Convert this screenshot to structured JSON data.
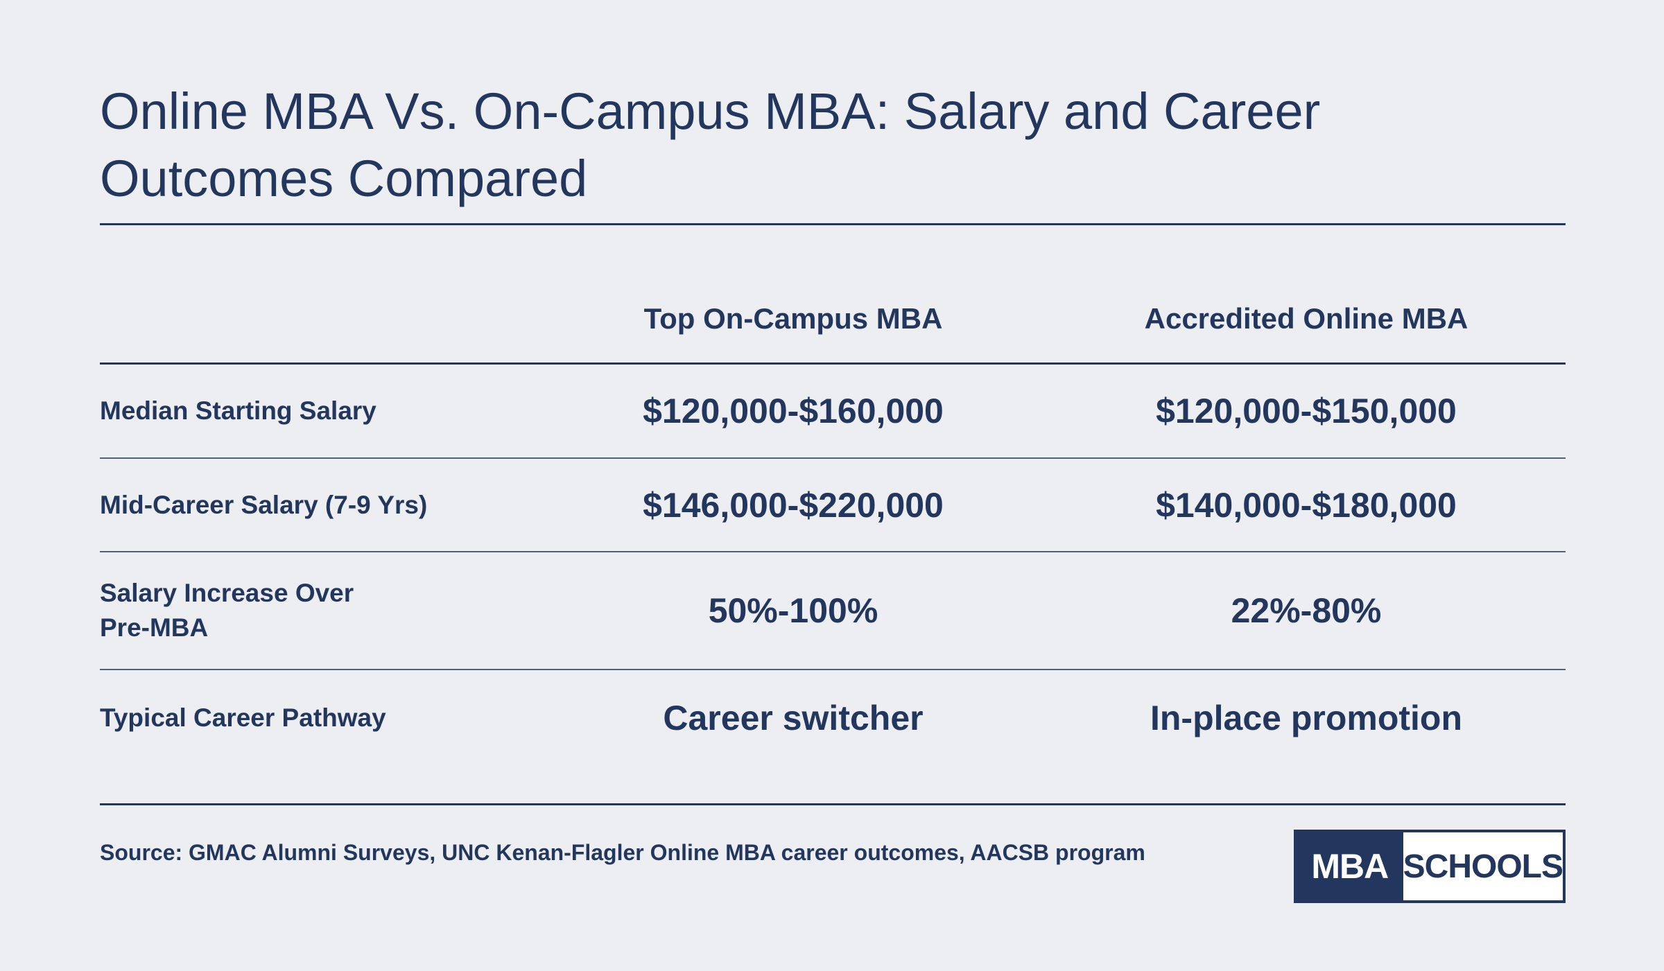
{
  "title": "Online MBA Vs. On-Campus MBA: Salary and Career Outcomes Compared",
  "table": {
    "columns": [
      "Top On-Campus MBA",
      "Accredited Online MBA"
    ],
    "rows": [
      {
        "label": "Median Starting Salary",
        "values": [
          "$120,000-$160,000",
          "$120,000-$150,000"
        ]
      },
      {
        "label": "Mid-Career Salary (7-9 Yrs)",
        "values": [
          "$146,000-$220,000",
          "$140,000-$180,000"
        ]
      },
      {
        "label": "Salary Increase Over Pre-MBA",
        "values": [
          "50%-100%",
          "22%-80%"
        ]
      },
      {
        "label": "Typical Career Pathway",
        "values": [
          "Career switcher",
          "In-place promotion"
        ]
      }
    ]
  },
  "source": "Source: GMAC Alumni Surveys, UNC Kenan-Flagler Online MBA career outcomes, AACSB program",
  "logo": {
    "part1": "MBA",
    "part2": "SCHOOLS"
  },
  "colors": {
    "background": "#eceef2",
    "text": "#23375e",
    "logo_bg": "#23375e"
  }
}
